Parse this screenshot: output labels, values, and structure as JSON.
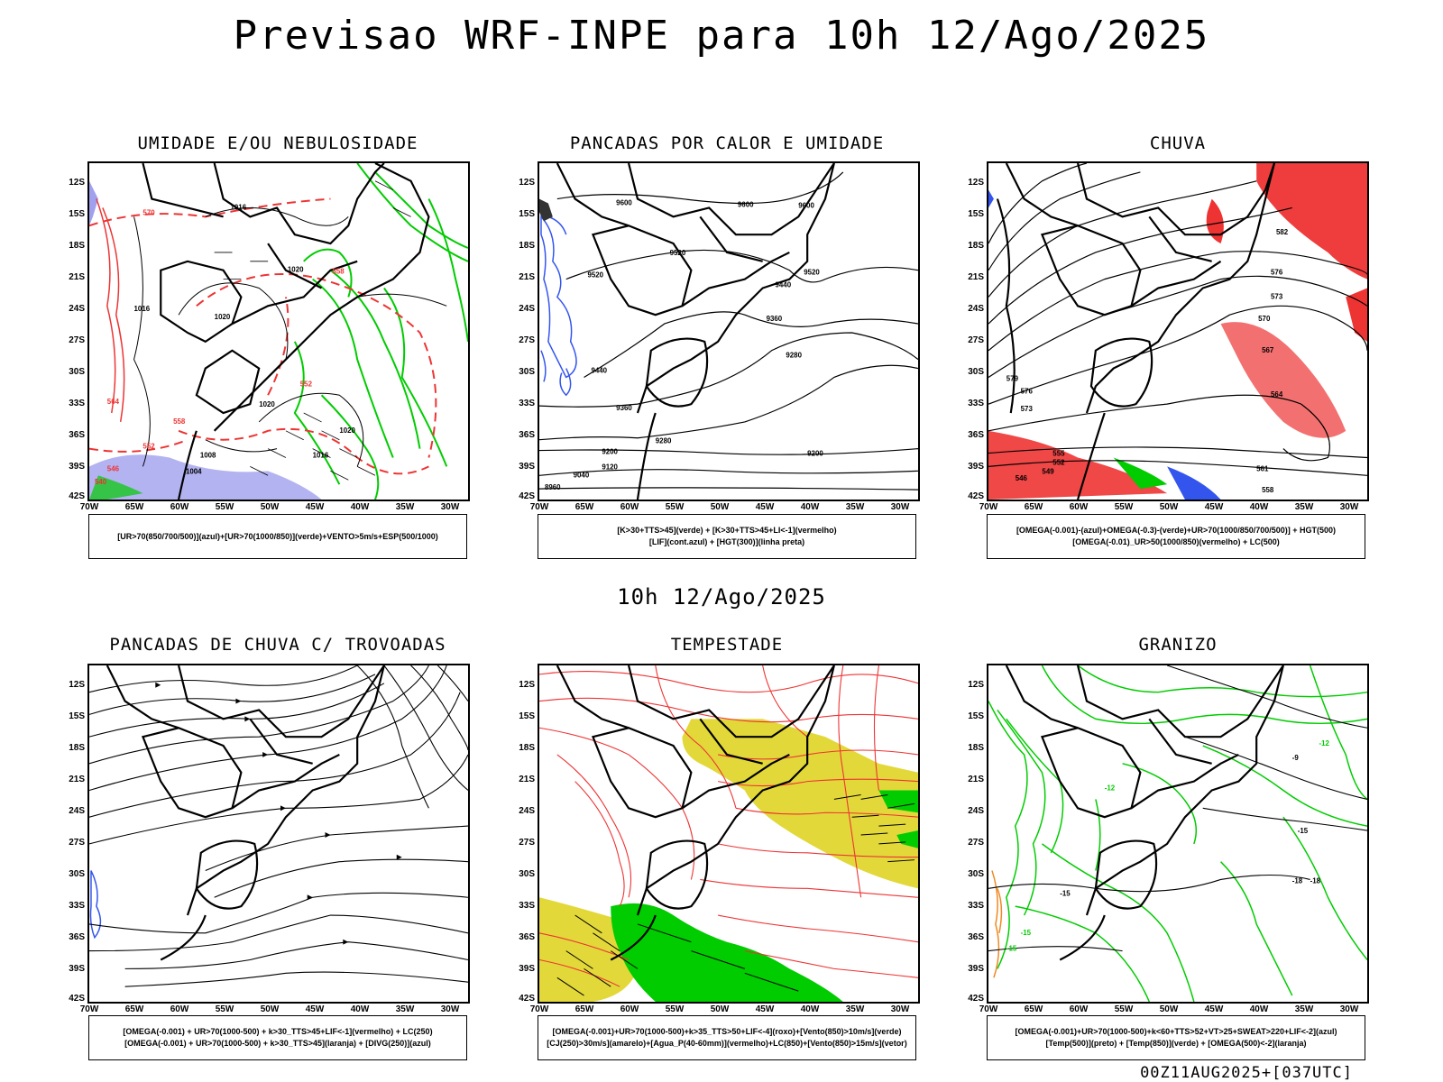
{
  "title": "Previsao WRF-INPE  para 10h 12/Ago/2025",
  "mid_title": "10h 12/Ago/2025",
  "timestamp": "00Z11AUG2025+[037UTC]",
  "axes": {
    "lat_labels": [
      "12S",
      "15S",
      "18S",
      "21S",
      "24S",
      "27S",
      "30S",
      "33S",
      "36S",
      "39S",
      "42S"
    ],
    "lon_labels": [
      "70W",
      "65W",
      "60W",
      "55W",
      "50W",
      "45W",
      "40W",
      "35W",
      "30W"
    ]
  },
  "colors": {
    "blue": "#3355ee",
    "green": "#00cc00",
    "red": "#ee3333",
    "yellow": "#e2d83a",
    "lavender": "#a0a0ee",
    "orange": "#ee8822"
  },
  "panels": [
    {
      "title": "UMIDADE E/OU NEBULOSIDADE",
      "legend": [
        "[UR>70(850/700/500)](azul)+[UR>70(1000/850)](verde)+VENTO>5m/s+ESP(500/1000)"
      ],
      "contour_labels": [
        "1016",
        "1020",
        "1020",
        "1020",
        "1020",
        "1016",
        "1008",
        "1004",
        "1016",
        "570",
        "558",
        "552",
        "546",
        "540",
        "564",
        "558",
        "552"
      ]
    },
    {
      "title": "PANCADAS POR CALOR E UMIDADE",
      "legend": [
        "[K>30+TTS>45](verde) + [K>30+TTS>45+LI<-1](vermelho)",
        "[LIF](cont.azul) + [HGT(300)](linha preta)"
      ],
      "contour_labels": [
        "9600",
        "9600",
        "9600",
        "9520",
        "9520",
        "9520",
        "9440",
        "9440",
        "9360",
        "9360",
        "9280",
        "9280",
        "9200",
        "9200",
        "9120",
        "9040",
        "8960"
      ]
    },
    {
      "title": "CHUVA",
      "legend": [
        "[OMEGA(-0.001)-(azul)+OMEGA(-0.3)-(verde)+UR>70(1000/850/700/500)] + HGT(500)",
        "[OMEGA(-0.01)_UR>50(1000/850)(vermelho) + LC(500)"
      ],
      "contour_labels": [
        "582",
        "576",
        "573",
        "570",
        "567",
        "564",
        "561",
        "558",
        "555",
        "552",
        "549",
        "546",
        "579",
        "576",
        "573"
      ]
    },
    {
      "title": "PANCADAS DE CHUVA C/ TROVOADAS",
      "legend": [
        "[OMEGA(-0.001) + UR>70(1000-500) + k>30_TTS>45+LIF<-1](vermelho) + LC(250)",
        "[OMEGA(-0.001) + UR>70(1000-500) + k>30_TTS>45](laranja) + [DIVG(250)](azul)"
      ],
      "contour_labels": []
    },
    {
      "title": "TEMPESTADE",
      "legend": [
        "[OMEGA(-0.001)+UR>70(1000-500)+k>35_TTS>50+LIF<-4](roxo)+[Vento(850)>10m/s](verde)",
        "[CJ(250)>30m/s](amarelo)+[Agua_P(40-60mm)](vermelho)+LC(850)+[Vento(850)>15m/s](vetor)"
      ],
      "contour_labels": []
    },
    {
      "title": "GRANIZO",
      "legend": [
        "[OMEGA(-0.001)+UR>70(1000-500)+k<60+TTS>52+VT>25+SWEAT>220+LIF<-2](azul)",
        "[Temp(500)](preto) + [Temp(850)](verde) + [OMEGA(500)<-2](laranja)"
      ],
      "contour_labels": [
        "-15",
        "-15",
        "-18",
        "-18",
        "-15",
        "-12",
        "-9",
        "-15",
        "-12"
      ]
    }
  ]
}
